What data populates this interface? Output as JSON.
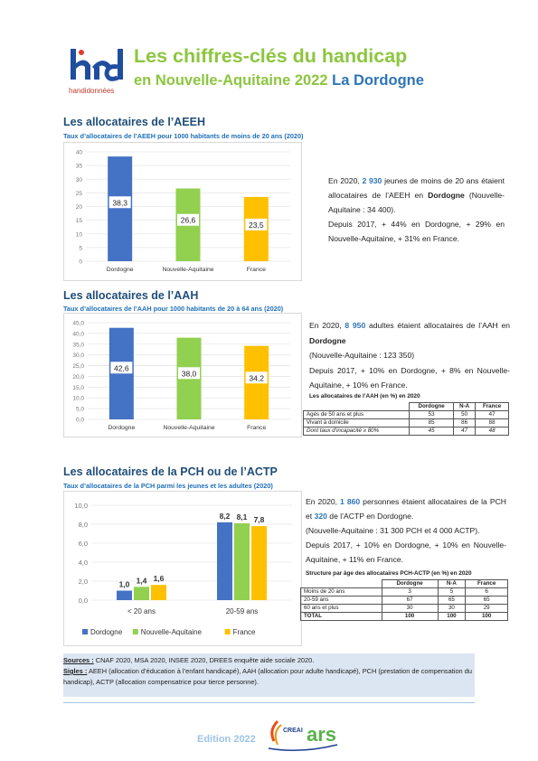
{
  "header": {
    "logo_text": "handidonnées",
    "title_line1": "Les chiffres-clés du handicap",
    "title_line2_region": "en Nouvelle-Aquitaine 2022",
    "title_line2_dept": "La Dordogne"
  },
  "aeeh": {
    "title": "Les allocataires de l’AEEH",
    "subtitle": "Taux d’allocataires de l’AEEH pour 1000 habitants de moins de 20 ans (2020)",
    "text": {
      "p1_a": "En 2020, ",
      "p1_num": "2 930",
      "p1_b": " jeunes de moins de 20 ans étaient allocataires de l’AEEH en ",
      "p1_dept": "Dordogne",
      "p1_c": " (Nouvelle-Aquitaine : 34 400).",
      "p2": "Depuis 2017, + 44% en Dordogne, + 29% en Nouvelle-Aquitaine, + 31% en France."
    },
    "chart_data": {
      "type": "bar",
      "categories": [
        "Dordogne",
        "Nouvelle-Aquitaine",
        "France"
      ],
      "values": [
        38.3,
        26.6,
        23.5
      ],
      "value_labels": [
        "38,3",
        "26,6",
        "23,5"
      ],
      "colors": [
        "#4472c4",
        "#92d050",
        "#ffc000"
      ],
      "ylim": [
        0,
        40
      ],
      "yticks": [
        "0",
        "5",
        "10",
        "15",
        "20",
        "25",
        "30",
        "35",
        "40"
      ]
    }
  },
  "aah": {
    "title": "Les allocataires de l’AAH",
    "subtitle": "Taux d’allocataires de l’AAH pour 1000 habitants de 20 à 64 ans (2020)",
    "text": {
      "p1_a": "En 2020, ",
      "p1_num": "8 950",
      "p1_b": " adultes étaient allocataires de l’AAH en ",
      "p1_dept": "Dordogne",
      "p1_c": "(Nouvelle-Aquitaine : 123 350)",
      "p2": "Depuis 2017, + 10% en Dordogne, + 8% en Nouvelle-Aquitaine, + 10% en France."
    },
    "chart_data": {
      "type": "bar",
      "categories": [
        "Dordogne",
        "Nouvelle-Aquitaine",
        "France"
      ],
      "values": [
        42.6,
        38.0,
        34.2
      ],
      "value_labels": [
        "42,6",
        "38,0",
        "34,2"
      ],
      "colors": [
        "#4472c4",
        "#92d050",
        "#ffc000"
      ],
      "ylim": [
        0,
        45
      ],
      "yticks": [
        "0,0",
        "5,0",
        "10,0",
        "15,0",
        "20,0",
        "25,0",
        "30,0",
        "35,0",
        "40,0",
        "45,0"
      ]
    },
    "table": {
      "caption": "Les allocataires de l’AAH (en %) en 2020",
      "headers": [
        "",
        "Dordogne",
        "N-A",
        "France"
      ],
      "rows": [
        [
          "Agés de 50 ans et plus",
          "53",
          "50",
          "47"
        ],
        [
          "Vivant à domicile",
          "85",
          "86",
          "88"
        ],
        [
          "Dont taux d’incapacité ≥ 80%",
          "45",
          "47",
          "48"
        ]
      ]
    }
  },
  "pch": {
    "title": "Les allocataires de la PCH ou de l’ACTP",
    "subtitle": "Taux d’allocataires de la PCH parmi les jeunes et les adultes (2020)",
    "text": {
      "p1_a": "En 2020, ",
      "p1_num": "1 860",
      "p1_b": " personnes étaient allocataires de la PCH et ",
      "p1_num2": "320",
      "p1_c": " de l’ACTP en Dordogne.",
      "p2": "(Nouvelle-Aquitaine : 31 300 PCH et 4 000 ACTP).",
      "p3": "Depuis 2017, + 10% en Dordogne, + 10% en Nouvelle-Aquitaine, + 11% en France."
    },
    "chart_data": {
      "type": "bar",
      "categories": [
        "< 20 ans",
        "20-59 ans"
      ],
      "series": [
        {
          "name": "Dordogne",
          "values": [
            1.0,
            8.2
          ],
          "labels": [
            "1,0",
            "8,2"
          ],
          "color": "#4472c4"
        },
        {
          "name": "Nouvelle-Aquitaine",
          "values": [
            1.4,
            8.1
          ],
          "labels": [
            "1,4",
            "8,1"
          ],
          "color": "#92d050"
        },
        {
          "name": "France",
          "values": [
            1.6,
            7.8
          ],
          "labels": [
            "1,6",
            "7,8"
          ],
          "color": "#ffc000"
        }
      ],
      "ylim": [
        0,
        10
      ],
      "yticks": [
        "0,0",
        "2,0",
        "4,0",
        "6,0",
        "8,0",
        "10,0"
      ],
      "legend": "bottom"
    },
    "table": {
      "caption": "Structure par âge des allocataires PCH-ACTP (en %) en 2020",
      "headers": [
        "",
        "Dordogne",
        "N-A",
        "France"
      ],
      "rows": [
        [
          "Moins de 20 ans",
          "3",
          "5",
          "6"
        ],
        [
          "20-59 ans",
          "67",
          "65",
          "65"
        ],
        [
          "60 ans et plus",
          "30",
          "30",
          "29"
        ],
        [
          "TOTAL",
          "100",
          "100",
          "100"
        ]
      ]
    }
  },
  "sources": {
    "label": "Sources :",
    "text": " CNAF 2020, MSA 2020, INSEE 2020, DREES enquête aide sociale 2020.",
    "sigles_label": "Sigles :",
    "sigles_text": " AEEH (allocation d’éducation à l’enfant handicapé), AAH (allocation pour adulte handicapé), PCH (prestation de compensation du handicap), ACTP (allocation compensatrice pour tierce personne)."
  },
  "footer": {
    "edition": "Edition 2022",
    "creai": "CREAI",
    "ars": "ars"
  }
}
